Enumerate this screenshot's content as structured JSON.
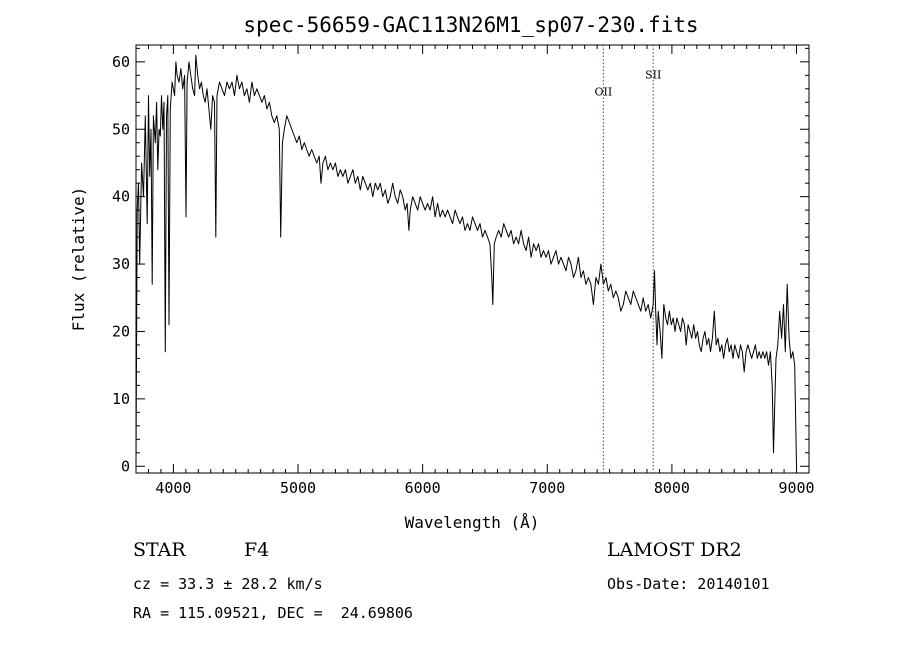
{
  "chart_data": {
    "type": "line",
    "title": "spec-56659-GAC113N26M1_sp07-230.fits",
    "xlabel": "Wavelength (Å)",
    "ylabel": "Flux (relative)",
    "xlim": [
      3700,
      9100
    ],
    "ylim": [
      -1,
      62.5
    ],
    "xticks": [
      4000,
      5000,
      6000,
      7000,
      8000,
      9000
    ],
    "yticks": [
      0,
      10,
      20,
      30,
      40,
      50,
      60
    ],
    "grid": false,
    "series": [
      {
        "color": "#000000",
        "points": [
          [
            3700,
            0
          ],
          [
            3710,
            38
          ],
          [
            3720,
            42
          ],
          [
            3730,
            30
          ],
          [
            3745,
            45
          ],
          [
            3760,
            40
          ],
          [
            3775,
            52
          ],
          [
            3790,
            36
          ],
          [
            3800,
            55
          ],
          [
            3810,
            43
          ],
          [
            3820,
            50
          ],
          [
            3830,
            27
          ],
          [
            3840,
            52
          ],
          [
            3855,
            48
          ],
          [
            3865,
            54
          ],
          [
            3875,
            44
          ],
          [
            3885,
            50
          ],
          [
            3895,
            49
          ],
          [
            3905,
            55
          ],
          [
            3915,
            50
          ],
          [
            3925,
            54
          ],
          [
            3935,
            17
          ],
          [
            3945,
            52
          ],
          [
            3955,
            55
          ],
          [
            3965,
            21
          ],
          [
            3975,
            53
          ],
          [
            3990,
            57
          ],
          [
            4000,
            56
          ],
          [
            4010,
            55
          ],
          [
            4020,
            60
          ],
          [
            4030,
            58
          ],
          [
            4045,
            57
          ],
          [
            4060,
            59
          ],
          [
            4075,
            56
          ],
          [
            4090,
            58
          ],
          [
            4101,
            37
          ],
          [
            4110,
            57
          ],
          [
            4125,
            60
          ],
          [
            4140,
            58
          ],
          [
            4155,
            56
          ],
          [
            4170,
            55
          ],
          [
            4180,
            61
          ],
          [
            4195,
            58
          ],
          [
            4210,
            56
          ],
          [
            4225,
            57
          ],
          [
            4240,
            55
          ],
          [
            4255,
            54
          ],
          [
            4270,
            56
          ],
          [
            4285,
            53
          ],
          [
            4300,
            50
          ],
          [
            4315,
            55
          ],
          [
            4330,
            54
          ],
          [
            4340,
            34
          ],
          [
            4350,
            55
          ],
          [
            4370,
            57
          ],
          [
            4390,
            56
          ],
          [
            4410,
            55
          ],
          [
            4430,
            57
          ],
          [
            4450,
            56
          ],
          [
            4470,
            57
          ],
          [
            4490,
            55
          ],
          [
            4510,
            58
          ],
          [
            4530,
            56
          ],
          [
            4550,
            57
          ],
          [
            4570,
            55
          ],
          [
            4590,
            56
          ],
          [
            4610,
            54
          ],
          [
            4630,
            57
          ],
          [
            4650,
            55
          ],
          [
            4670,
            56
          ],
          [
            4690,
            55
          ],
          [
            4710,
            54
          ],
          [
            4730,
            55
          ],
          [
            4750,
            53
          ],
          [
            4770,
            54
          ],
          [
            4790,
            52
          ],
          [
            4810,
            51
          ],
          [
            4830,
            52
          ],
          [
            4850,
            50
          ],
          [
            4861,
            34
          ],
          [
            4875,
            48
          ],
          [
            4890,
            50
          ],
          [
            4910,
            52
          ],
          [
            4930,
            51
          ],
          [
            4950,
            50
          ],
          [
            4970,
            49
          ],
          [
            4990,
            48
          ],
          [
            5010,
            49
          ],
          [
            5030,
            47
          ],
          [
            5050,
            48
          ],
          [
            5070,
            47
          ],
          [
            5090,
            46
          ],
          [
            5110,
            47
          ],
          [
            5130,
            46
          ],
          [
            5150,
            45
          ],
          [
            5170,
            46
          ],
          [
            5184,
            42
          ],
          [
            5200,
            45
          ],
          [
            5220,
            46
          ],
          [
            5240,
            44
          ],
          [
            5260,
            45
          ],
          [
            5280,
            44
          ],
          [
            5300,
            45
          ],
          [
            5320,
            43
          ],
          [
            5340,
            44
          ],
          [
            5360,
            43
          ],
          [
            5380,
            44
          ],
          [
            5400,
            42
          ],
          [
            5420,
            43
          ],
          [
            5440,
            44
          ],
          [
            5460,
            42
          ],
          [
            5480,
            43
          ],
          [
            5500,
            41
          ],
          [
            5520,
            43
          ],
          [
            5540,
            42
          ],
          [
            5560,
            41
          ],
          [
            5580,
            42
          ],
          [
            5600,
            40
          ],
          [
            5620,
            42
          ],
          [
            5640,
            41
          ],
          [
            5660,
            42
          ],
          [
            5680,
            40
          ],
          [
            5700,
            41
          ],
          [
            5720,
            39
          ],
          [
            5740,
            40
          ],
          [
            5760,
            42
          ],
          [
            5780,
            40
          ],
          [
            5800,
            39
          ],
          [
            5820,
            41
          ],
          [
            5840,
            40
          ],
          [
            5860,
            38
          ],
          [
            5875,
            39
          ],
          [
            5890,
            35
          ],
          [
            5900,
            38
          ],
          [
            5920,
            40
          ],
          [
            5940,
            39
          ],
          [
            5960,
            38
          ],
          [
            5980,
            40
          ],
          [
            6000,
            39
          ],
          [
            6020,
            38
          ],
          [
            6040,
            39
          ],
          [
            6060,
            38
          ],
          [
            6080,
            40
          ],
          [
            6100,
            37
          ],
          [
            6120,
            39
          ],
          [
            6140,
            37
          ],
          [
            6160,
            38
          ],
          [
            6180,
            37
          ],
          [
            6200,
            38
          ],
          [
            6220,
            37
          ],
          [
            6240,
            36
          ],
          [
            6260,
            38
          ],
          [
            6280,
            37
          ],
          [
            6300,
            36
          ],
          [
            6320,
            37
          ],
          [
            6340,
            35
          ],
          [
            6360,
            36
          ],
          [
            6380,
            35
          ],
          [
            6400,
            37
          ],
          [
            6420,
            36
          ],
          [
            6440,
            35
          ],
          [
            6460,
            36
          ],
          [
            6480,
            34
          ],
          [
            6500,
            35
          ],
          [
            6520,
            34
          ],
          [
            6540,
            33
          ],
          [
            6555,
            28
          ],
          [
            6563,
            24
          ],
          [
            6575,
            33
          ],
          [
            6590,
            34
          ],
          [
            6610,
            35
          ],
          [
            6630,
            34
          ],
          [
            6650,
            36
          ],
          [
            6670,
            35
          ],
          [
            6690,
            34
          ],
          [
            6710,
            35
          ],
          [
            6730,
            33
          ],
          [
            6750,
            34
          ],
          [
            6770,
            33
          ],
          [
            6790,
            35
          ],
          [
            6810,
            33
          ],
          [
            6830,
            32
          ],
          [
            6850,
            34
          ],
          [
            6870,
            31
          ],
          [
            6890,
            33
          ],
          [
            6910,
            32
          ],
          [
            6930,
            33
          ],
          [
            6950,
            31
          ],
          [
            6970,
            32
          ],
          [
            6990,
            31
          ],
          [
            7010,
            32
          ],
          [
            7030,
            30
          ],
          [
            7050,
            31
          ],
          [
            7070,
            32
          ],
          [
            7090,
            30
          ],
          [
            7110,
            31
          ],
          [
            7130,
            30
          ],
          [
            7150,
            29
          ],
          [
            7170,
            31
          ],
          [
            7190,
            30
          ],
          [
            7210,
            28
          ],
          [
            7230,
            29
          ],
          [
            7250,
            31
          ],
          [
            7270,
            28
          ],
          [
            7290,
            29
          ],
          [
            7310,
            27
          ],
          [
            7330,
            28
          ],
          [
            7350,
            27
          ],
          [
            7370,
            24
          ],
          [
            7390,
            28
          ],
          [
            7410,
            27
          ],
          [
            7430,
            30
          ],
          [
            7450,
            27
          ],
          [
            7470,
            28
          ],
          [
            7490,
            26
          ],
          [
            7510,
            27
          ],
          [
            7530,
            25
          ],
          [
            7550,
            26
          ],
          [
            7570,
            25
          ],
          [
            7590,
            23
          ],
          [
            7610,
            24
          ],
          [
            7630,
            26
          ],
          [
            7650,
            25
          ],
          [
            7670,
            24
          ],
          [
            7690,
            26
          ],
          [
            7710,
            25
          ],
          [
            7730,
            24
          ],
          [
            7750,
            23
          ],
          [
            7770,
            25
          ],
          [
            7790,
            23
          ],
          [
            7810,
            24
          ],
          [
            7830,
            22
          ],
          [
            7850,
            24
          ],
          [
            7860,
            29
          ],
          [
            7870,
            23
          ],
          [
            7880,
            18
          ],
          [
            7890,
            23
          ],
          [
            7905,
            20
          ],
          [
            7920,
            16
          ],
          [
            7935,
            24
          ],
          [
            7950,
            22
          ],
          [
            7965,
            21
          ],
          [
            7980,
            23
          ],
          [
            7995,
            21
          ],
          [
            8010,
            22
          ],
          [
            8025,
            20
          ],
          [
            8040,
            22
          ],
          [
            8055,
            21
          ],
          [
            8070,
            20
          ],
          [
            8085,
            22
          ],
          [
            8100,
            21
          ],
          [
            8115,
            18
          ],
          [
            8130,
            21
          ],
          [
            8145,
            20
          ],
          [
            8160,
            19
          ],
          [
            8175,
            21
          ],
          [
            8190,
            19
          ],
          [
            8205,
            20
          ],
          [
            8220,
            18
          ],
          [
            8235,
            17
          ],
          [
            8250,
            19
          ],
          [
            8265,
            20
          ],
          [
            8280,
            18
          ],
          [
            8295,
            19
          ],
          [
            8310,
            17
          ],
          [
            8325,
            19
          ],
          [
            8340,
            23
          ],
          [
            8355,
            18
          ],
          [
            8370,
            19
          ],
          [
            8385,
            17
          ],
          [
            8400,
            18
          ],
          [
            8415,
            16
          ],
          [
            8430,
            18
          ],
          [
            8445,
            19
          ],
          [
            8460,
            17
          ],
          [
            8475,
            18
          ],
          [
            8490,
            16
          ],
          [
            8505,
            18
          ],
          [
            8520,
            17
          ],
          [
            8535,
            16
          ],
          [
            8550,
            18
          ],
          [
            8565,
            17
          ],
          [
            8580,
            14
          ],
          [
            8595,
            17
          ],
          [
            8610,
            18
          ],
          [
            8625,
            17
          ],
          [
            8640,
            16
          ],
          [
            8655,
            17
          ],
          [
            8670,
            18
          ],
          [
            8685,
            16
          ],
          [
            8700,
            17
          ],
          [
            8715,
            16
          ],
          [
            8730,
            17
          ],
          [
            8745,
            16
          ],
          [
            8760,
            17
          ],
          [
            8775,
            15
          ],
          [
            8790,
            17
          ],
          [
            8805,
            12
          ],
          [
            8815,
            2
          ],
          [
            8825,
            9
          ],
          [
            8835,
            16
          ],
          [
            8850,
            18
          ],
          [
            8865,
            23
          ],
          [
            8880,
            19
          ],
          [
            8895,
            24
          ],
          [
            8910,
            17
          ],
          [
            8925,
            27
          ],
          [
            8940,
            19
          ],
          [
            8955,
            16
          ],
          [
            8970,
            17
          ],
          [
            8985,
            15
          ],
          [
            9000,
            0
          ]
        ]
      }
    ],
    "annotations": [
      {
        "label": "OII",
        "x": 7450,
        "label_y": 55,
        "color": "#aa2222",
        "style": "dotted"
      },
      {
        "label": "SII",
        "x": 7850,
        "label_y": 57.5,
        "color": "#aa2222",
        "style": "dotted"
      }
    ]
  },
  "info": {
    "class_label": "STAR",
    "subclass": "F4",
    "survey": "LAMOST DR2",
    "cz": "cz = 33.3 ± 28.2 km/s",
    "obs_date": "Obs-Date: 20140101",
    "coords": "RA = 115.09521, DEC =  24.69806"
  }
}
